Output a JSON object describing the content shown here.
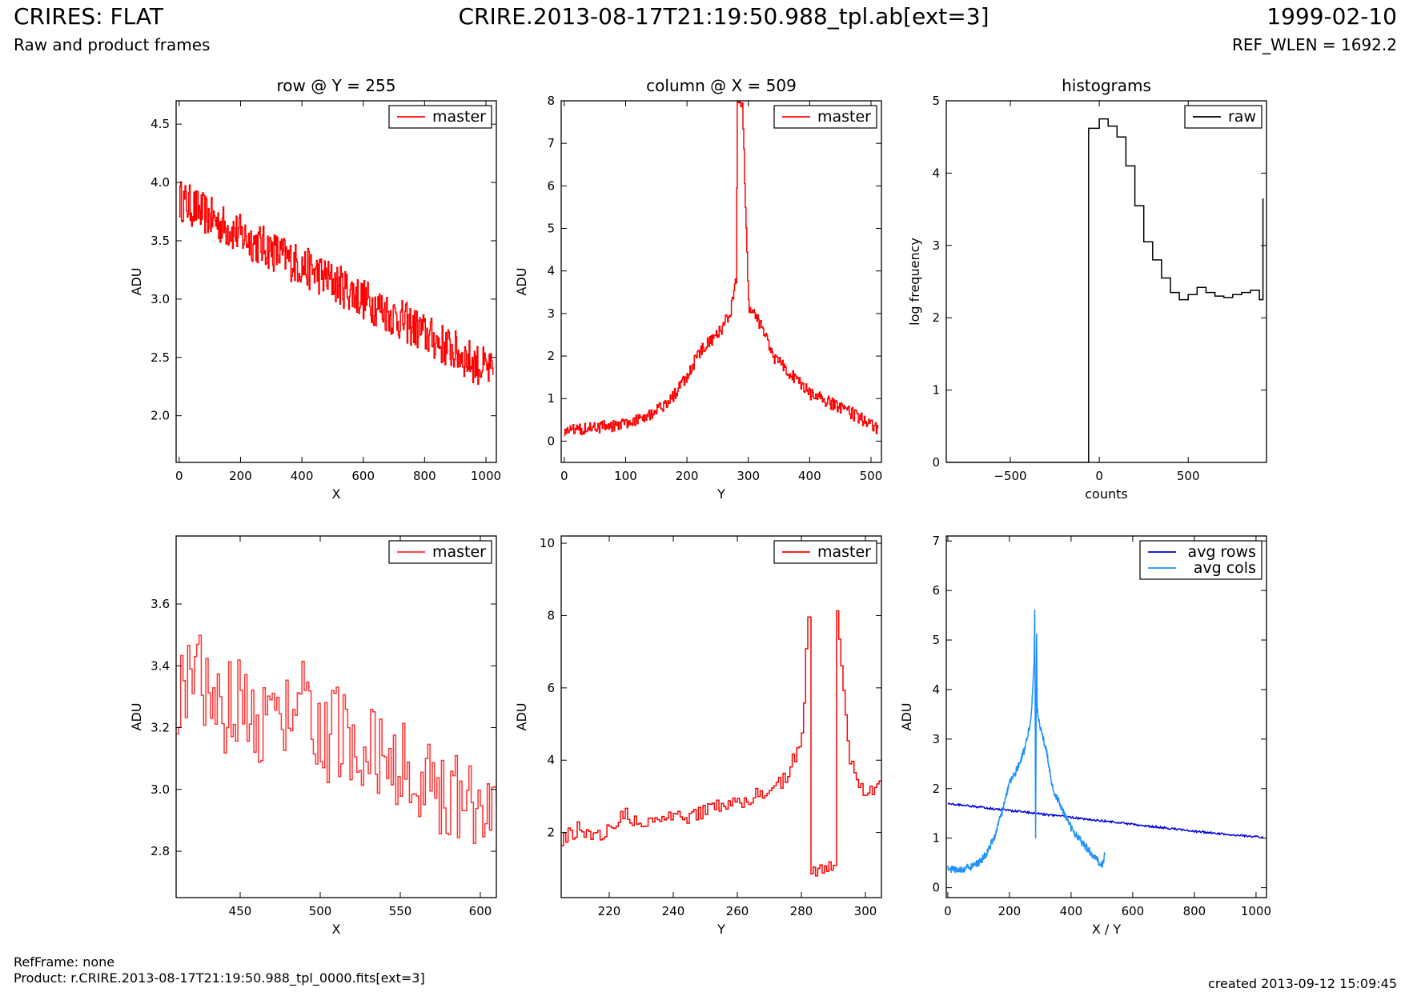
{
  "header": {
    "title": "CRIRES: FLAT",
    "subtitle": "Raw and product frames",
    "center": "CRIRE.2013-08-17T21:19:50.988_tpl.ab[ext=3]",
    "date": "1999-02-10",
    "ref_wlen": "REF_WLEN = 1692.2"
  },
  "footer": {
    "ref_frame": "RefFrame: none",
    "product": "Product: r.CRIRE.2013-08-17T21:19:50.988_tpl_0000.fits[ext=3]",
    "created": "created 2013-09-12 15:09:45"
  },
  "colors": {
    "red": "#ff0000",
    "blue": "#0000dd",
    "light_blue": "#1e90ff",
    "black": "#000000"
  },
  "chart_data": [
    {
      "type": "line",
      "title": "row @ Y = 255",
      "xlabel": "X",
      "ylabel": "ADU",
      "xlim": [
        -10,
        1034
      ],
      "ylim": [
        1.6,
        4.7
      ],
      "xticks": [
        0,
        200,
        400,
        600,
        800,
        1000
      ],
      "xtick_labels": [
        "0",
        "200",
        "400",
        "600",
        "800",
        "1000"
      ],
      "yticks": [
        2.0,
        2.5,
        3.0,
        3.5,
        4.0,
        4.5
      ],
      "ytick_labels": [
        "2.0",
        "2.5",
        "3.0",
        "3.5",
        "4.0",
        "4.5"
      ],
      "legend_position": "top-right",
      "series": [
        {
          "name": "master",
          "color": "#ff0000",
          "style": "steps",
          "x": [
            0,
            50,
            100,
            150,
            200,
            250,
            300,
            350,
            400,
            450,
            500,
            550,
            600,
            650,
            700,
            750,
            800,
            850,
            900,
            950,
            1000,
            1023
          ],
          "y": [
            3.85,
            3.78,
            3.7,
            3.62,
            3.55,
            3.48,
            3.42,
            3.35,
            3.28,
            3.22,
            3.15,
            3.08,
            3.0,
            2.93,
            2.85,
            2.78,
            2.7,
            2.62,
            2.55,
            2.47,
            2.4,
            2.35
          ],
          "noise": 0.18
        }
      ]
    },
    {
      "type": "line",
      "title": "column @ X = 509",
      "xlabel": "Y",
      "ylabel": "ADU",
      "xlim": [
        -5,
        517
      ],
      "ylim": [
        -0.5,
        8.0
      ],
      "xticks": [
        0,
        100,
        200,
        300,
        400,
        500
      ],
      "xtick_labels": [
        "0",
        "100",
        "200",
        "300",
        "400",
        "500"
      ],
      "yticks": [
        0,
        1,
        2,
        3,
        4,
        5,
        6,
        7,
        8
      ],
      "ytick_labels": [
        "0",
        "1",
        "2",
        "3",
        "4",
        "5",
        "6",
        "7",
        "8"
      ],
      "legend_position": "top-right",
      "series": [
        {
          "name": "master",
          "color": "#ff0000",
          "style": "steps",
          "x": [
            0,
            25,
            50,
            75,
            100,
            125,
            150,
            175,
            200,
            225,
            250,
            270,
            280,
            282,
            290,
            300,
            320,
            340,
            375,
            400,
            450,
            500,
            511
          ],
          "y": [
            0.25,
            0.3,
            0.32,
            0.35,
            0.42,
            0.55,
            0.7,
            1.0,
            1.55,
            2.2,
            2.5,
            3.0,
            3.8,
            8.0,
            8.0,
            3.2,
            2.7,
            2.0,
            1.5,
            1.1,
            0.8,
            0.4,
            0.3
          ],
          "noise": 0.15
        }
      ]
    },
    {
      "type": "line",
      "title": "histograms",
      "xlabel": "counts",
      "ylabel": "log frequency",
      "xlim": [
        -860,
        940
      ],
      "ylim": [
        0,
        5
      ],
      "xticks": [
        -500,
        0,
        500
      ],
      "xtick_labels": [
        "−500",
        "0",
        "500"
      ],
      "yticks": [
        0,
        1,
        2,
        3,
        4,
        5
      ],
      "ytick_labels": [
        "0",
        "1",
        "2",
        "3",
        "4",
        "5"
      ],
      "legend_position": "top-right",
      "series": [
        {
          "name": "raw",
          "color": "#000000",
          "style": "steps",
          "x": [
            -860,
            -60,
            -60,
            0,
            50,
            100,
            150,
            200,
            250,
            300,
            350,
            400,
            450,
            500,
            550,
            600,
            650,
            700,
            750,
            800,
            850,
            900,
            920
          ],
          "y": [
            0,
            0,
            4.62,
            4.75,
            4.65,
            4.5,
            4.1,
            3.55,
            3.05,
            2.8,
            2.55,
            2.35,
            2.25,
            2.32,
            2.42,
            2.35,
            2.3,
            2.28,
            2.32,
            2.35,
            2.38,
            2.25,
            3.65
          ]
        }
      ]
    },
    {
      "type": "line",
      "title": "",
      "xlabel": "X",
      "ylabel": "ADU",
      "xlim": [
        410,
        610
      ],
      "ylim": [
        2.65,
        3.82
      ],
      "xticks": [
        450,
        500,
        550,
        600
      ],
      "xtick_labels": [
        "450",
        "500",
        "550",
        "600"
      ],
      "yticks": [
        2.8,
        3.0,
        3.2,
        3.4,
        3.6
      ],
      "ytick_labels": [
        "2.8",
        "3.0",
        "3.2",
        "3.4",
        "3.6"
      ],
      "legend_position": "top-right",
      "series": [
        {
          "name": "master",
          "color": "#ff3333",
          "style": "steps",
          "x": [
            410,
            420,
            430,
            440,
            450,
            460,
            470,
            480,
            490,
            500,
            510,
            520,
            530,
            540,
            550,
            560,
            570,
            580,
            590,
            600,
            610
          ],
          "y": [
            3.3,
            3.42,
            3.3,
            3.25,
            3.3,
            3.22,
            3.3,
            3.2,
            3.28,
            3.15,
            3.2,
            3.1,
            3.15,
            3.05,
            3.1,
            3.0,
            3.02,
            2.98,
            3.0,
            2.95,
            2.95
          ],
          "noise": 0.15
        }
      ]
    },
    {
      "type": "line",
      "title": "",
      "xlabel": "Y",
      "ylabel": "ADU",
      "xlim": [
        205,
        305
      ],
      "ylim": [
        0.2,
        10.2
      ],
      "xticks": [
        220,
        240,
        260,
        280,
        300
      ],
      "xtick_labels": [
        "220",
        "240",
        "260",
        "280",
        "300"
      ],
      "yticks": [
        2,
        4,
        6,
        8,
        10
      ],
      "ytick_labels": [
        "2",
        "4",
        "6",
        "8",
        "10"
      ],
      "legend_position": "top-right",
      "series": [
        {
          "name": "master",
          "color": "#ff0000",
          "style": "steps",
          "x": [
            205,
            210,
            215,
            220,
            225,
            230,
            235,
            240,
            245,
            250,
            255,
            260,
            265,
            270,
            275,
            280,
            282,
            283,
            290,
            291,
            295,
            300,
            305
          ],
          "y": [
            1.8,
            2.1,
            1.9,
            2.1,
            2.5,
            2.2,
            2.3,
            2.4,
            2.4,
            2.6,
            2.8,
            2.85,
            3.0,
            3.2,
            3.5,
            4.6,
            8.1,
            1.0,
            1.0,
            8.1,
            4.0,
            3.0,
            3.4
          ],
          "noise": 0.2
        }
      ]
    },
    {
      "type": "line",
      "title": "",
      "xlabel": "X / Y",
      "ylabel": "ADU",
      "xlim": [
        -5,
        1034
      ],
      "ylim": [
        -0.2,
        7.1
      ],
      "xticks": [
        0,
        200,
        400,
        600,
        800,
        1000
      ],
      "xtick_labels": [
        "0",
        "200",
        "400",
        "600",
        "800",
        "1000"
      ],
      "yticks": [
        0,
        1,
        2,
        3,
        4,
        5,
        6,
        7
      ],
      "ytick_labels": [
        "0",
        "1",
        "2",
        "3",
        "4",
        "5",
        "6",
        "7"
      ],
      "legend_position": "top-right",
      "series": [
        {
          "name": "avg rows",
          "color": "#0000dd",
          "style": "line",
          "x": [
            0,
            100,
            200,
            300,
            400,
            500,
            600,
            700,
            800,
            900,
            1000,
            1023
          ],
          "y": [
            1.7,
            1.63,
            1.56,
            1.49,
            1.42,
            1.35,
            1.28,
            1.21,
            1.14,
            1.08,
            1.03,
            1.01
          ],
          "noise": 0.02
        },
        {
          "name": "avg cols",
          "color": "#1e90ff",
          "style": "line",
          "x": [
            0,
            25,
            50,
            75,
            100,
            125,
            150,
            175,
            200,
            225,
            250,
            270,
            280,
            282,
            285,
            288,
            290,
            300,
            320,
            340,
            375,
            400,
            450,
            500,
            511
          ],
          "y": [
            0.4,
            0.35,
            0.38,
            0.42,
            0.5,
            0.7,
            1.0,
            1.5,
            2.1,
            2.4,
            2.8,
            3.4,
            4.5,
            5.6,
            1.0,
            5.1,
            3.6,
            3.2,
            2.8,
            2.0,
            1.55,
            1.2,
            0.8,
            0.45,
            0.7
          ],
          "noise": 0.08
        }
      ]
    }
  ]
}
